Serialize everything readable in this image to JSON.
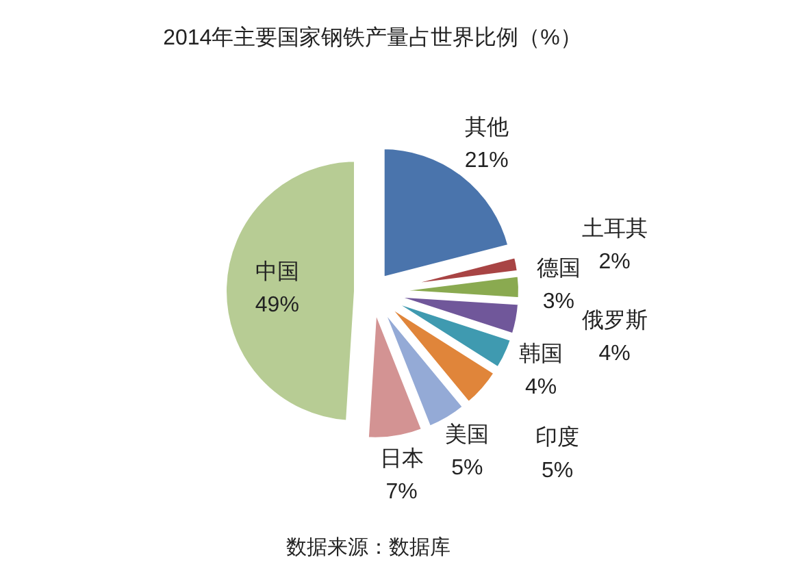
{
  "chart_data": {
    "type": "pie",
    "title": "2014年主要国家钢铁产量占世界比例（%）",
    "categories": [
      "其他",
      "土耳其",
      "德国",
      "俄罗斯",
      "韩国",
      "印度",
      "美国",
      "日本",
      "中国"
    ],
    "values": [
      21,
      2,
      3,
      4,
      4,
      5,
      5,
      7,
      49
    ],
    "value_labels": [
      "21%",
      "2%",
      "3%",
      "4%",
      "4%",
      "5%",
      "5%",
      "7%",
      "49%"
    ],
    "colors": [
      "#4a74ac",
      "#a84444",
      "#8aaa50",
      "#70579a",
      "#3f9ab0",
      "#e0853a",
      "#94aad6",
      "#d39393",
      "#b7cc94"
    ],
    "annotations": [
      "数据来源：数据库"
    ]
  }
}
